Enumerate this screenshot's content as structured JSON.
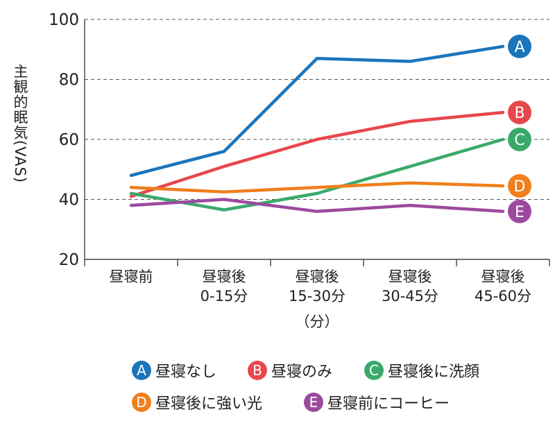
{
  "chart_data": {
    "type": "line",
    "ylabel": "主観的眠気(VAS)",
    "xlabel": "（分）",
    "ylim": [
      20,
      100
    ],
    "yticks": [
      20,
      40,
      60,
      80,
      100
    ],
    "grid": "dashed-horizontal",
    "categories": [
      [
        "昼寝前"
      ],
      [
        "昼寝後",
        "0-15分"
      ],
      [
        "昼寝後",
        "15-30分"
      ],
      [
        "昼寝後",
        "30-45分"
      ],
      [
        "昼寝後",
        "45-60分"
      ]
    ],
    "series": [
      {
        "key": "A",
        "name": "昼寝なし",
        "color": "#1b75bb",
        "values": [
          48,
          56,
          87,
          86,
          91
        ]
      },
      {
        "key": "B",
        "name": "昼寝のみ",
        "color": "#e8474c",
        "values": [
          41,
          51,
          60,
          66,
          69
        ]
      },
      {
        "key": "C",
        "name": "昼寝後に洗顔",
        "color": "#3aaa6a",
        "values": [
          42,
          36.5,
          42,
          51,
          60
        ]
      },
      {
        "key": "D",
        "name": "昼寝後に強い光",
        "color": "#f07f1d",
        "values": [
          44,
          42.5,
          44,
          45.5,
          44.5
        ]
      },
      {
        "key": "E",
        "name": "昼寝前にコーヒー",
        "color": "#9c4a9e",
        "values": [
          38,
          40,
          36,
          38,
          36
        ]
      }
    ]
  }
}
